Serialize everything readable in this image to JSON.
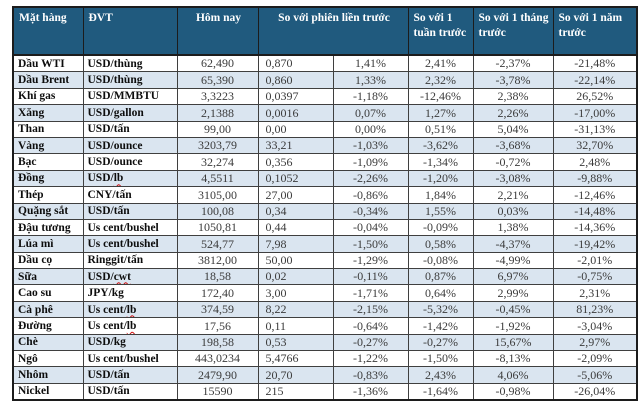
{
  "table": {
    "columns": {
      "product": "Mặt hàng",
      "unit": "ĐVT",
      "today": "Hôm nay",
      "vs_prev_session": "So với phiên liền trước",
      "vs_week": "So với 1 tuần trước",
      "vs_month": "So với 1 tháng trước",
      "vs_year": "So với 1 năm trước"
    },
    "colors": {
      "header_bg": "#205A7E",
      "header_text": "#FFFFFF",
      "row_bg": "#FFFFFF",
      "row_alt_bg": "#DAE5F0",
      "grid_line": "#3F3F3F",
      "outer_border": "#1C1C1C",
      "number_text": "#3B3B3B",
      "name_text": "#0D0D0D",
      "spellcheck_underline": "#CC1111"
    },
    "rows": [
      {
        "name": "Dầu WTI",
        "unit": "USD/thùng",
        "unit_flag": null,
        "today": "62,490",
        "change": "0,870",
        "pct_session": "1,41%",
        "pct_week": "2,41%",
        "pct_month": "-2,37%",
        "pct_year": "-21,48%"
      },
      {
        "name": "Dầu Brent",
        "unit": "USD/thùng",
        "unit_flag": null,
        "today": "65,390",
        "change": "0,860",
        "pct_session": "1,33%",
        "pct_week": "2,32%",
        "pct_month": "-3,78%",
        "pct_year": "-22,14%"
      },
      {
        "name": "Khí gas",
        "unit": "USD/MMBTU",
        "unit_flag": null,
        "today": "3,3223",
        "change": "0,0397",
        "pct_session": "-1,18%",
        "pct_week": "-12,46%",
        "pct_month": "2,38%",
        "pct_year": "26,52%"
      },
      {
        "name": "Xăng",
        "unit": "USD/gallon",
        "unit_flag": null,
        "today": "2,1388",
        "change": "0,0016",
        "pct_session": "0,07%",
        "pct_week": "1,27%",
        "pct_month": "2,26%",
        "pct_year": "-17,00%"
      },
      {
        "name": "Than",
        "unit": "USD/tấn",
        "unit_flag": null,
        "today": "99,00",
        "change": "0,00",
        "pct_session": "0,00%",
        "pct_week": "0,51%",
        "pct_month": "5,04%",
        "pct_year": "-31,13%"
      },
      {
        "name": "Vàng",
        "unit": "USD/ounce",
        "unit_flag": null,
        "today": "3203,79",
        "change": "33,21",
        "pct_session": "-1,03%",
        "pct_week": "-3,62%",
        "pct_month": "-3,68%",
        "pct_year": "32,70%"
      },
      {
        "name": "Bạc",
        "unit": "USD/ounce",
        "unit_flag": null,
        "today": "32,274",
        "change": "0,356",
        "pct_session": "-1,09%",
        "pct_week": "-1,34%",
        "pct_month": "-0,72%",
        "pct_year": "2,48%"
      },
      {
        "name": "Đồng",
        "unit": "USD/lb",
        "unit_flag": "lb",
        "today": "4,5511",
        "change": "0,1052",
        "pct_session": "-2,26%",
        "pct_week": "-1,20%",
        "pct_month": "-3,08%",
        "pct_year": "-9,88%"
      },
      {
        "name": "Thép",
        "unit": "CNY/tấn",
        "unit_flag": null,
        "today": "3105,00",
        "change": "27,00",
        "pct_session": "-0,86%",
        "pct_week": "1,84%",
        "pct_month": "2,21%",
        "pct_year": "-12,46%"
      },
      {
        "name": "Quặng sắt",
        "unit": "USD/tấn",
        "unit_flag": null,
        "today": "100,08",
        "change": "0,34",
        "pct_session": "-0,34%",
        "pct_week": "1,55%",
        "pct_month": "0,03%",
        "pct_year": "-14,48%"
      },
      {
        "name": "Đậu tương",
        "unit": "Us cent/bushel",
        "unit_flag": null,
        "today": "1050,81",
        "change": "0,44",
        "pct_session": "-0,04%",
        "pct_week": "-0,09%",
        "pct_month": "1,38%",
        "pct_year": "-14,36%"
      },
      {
        "name": "Lúa mì",
        "unit": "Us cent/bushel",
        "unit_flag": null,
        "today": "524,77",
        "change": "7,98",
        "pct_session": "-1,50%",
        "pct_week": "0,58%",
        "pct_month": "-4,37%",
        "pct_year": "-19,42%"
      },
      {
        "name": "Dầu cọ",
        "unit": "Ringgit/tấn",
        "unit_flag": null,
        "today": "3812,00",
        "change": "50,00",
        "pct_session": "-1,29%",
        "pct_week": "-0,08%",
        "pct_month": "-4,99%",
        "pct_year": "-2,01%"
      },
      {
        "name": "Sữa",
        "unit": "USD/cwt",
        "unit_flag": "cwt",
        "today": "18,58",
        "change": "0,02",
        "pct_session": "-0,11%",
        "pct_week": "0,87%",
        "pct_month": "6,97%",
        "pct_year": "-0,75%"
      },
      {
        "name": "Cao su",
        "unit": "JPY/kg",
        "unit_flag": null,
        "today": "172,40",
        "change": "3,00",
        "pct_session": "-1,71%",
        "pct_week": "0,64%",
        "pct_month": "2,99%",
        "pct_year": "2,31%"
      },
      {
        "name": "Cà phê",
        "unit": "Us cent/lb",
        "unit_flag": "lb",
        "today": "374,59",
        "change": "8,22",
        "pct_session": "-2,15%",
        "pct_week": "-5,32%",
        "pct_month": "-0,45%",
        "pct_year": "81,23%"
      },
      {
        "name": "Đường",
        "unit": "Us cent/lb",
        "unit_flag": "lb",
        "today": "17,56",
        "change": "0,11",
        "pct_session": "-0,64%",
        "pct_week": "-1,42%",
        "pct_month": "-1,92%",
        "pct_year": "-3,04%"
      },
      {
        "name": "Chè",
        "unit": "USD/kg",
        "unit_flag": null,
        "today": "198,58",
        "change": "0,53",
        "pct_session": "-0,27%",
        "pct_week": "-0,27%",
        "pct_month": "15,67%",
        "pct_year": "2,97%"
      },
      {
        "name": "Ngô",
        "unit": "Us cent/bushel",
        "unit_flag": null,
        "today": "443,0234",
        "change": "5,4766",
        "pct_session": "-1,22%",
        "pct_week": "-1,50%",
        "pct_month": "-8,13%",
        "pct_year": "-2,09%"
      },
      {
        "name": "Nhôm",
        "unit": "USD/tấn",
        "unit_flag": null,
        "today": "2479,90",
        "change": "20,70",
        "pct_session": "-0,83%",
        "pct_week": "2,43%",
        "pct_month": "4,06%",
        "pct_year": "-5,06%"
      },
      {
        "name": "Nickel",
        "unit": "USD/tấn",
        "unit_flag": null,
        "today": "15590",
        "change": "215",
        "pct_session": "-1,36%",
        "pct_week": "-1,64%",
        "pct_month": "-0,98%",
        "pct_year": "-26,04%"
      }
    ]
  }
}
